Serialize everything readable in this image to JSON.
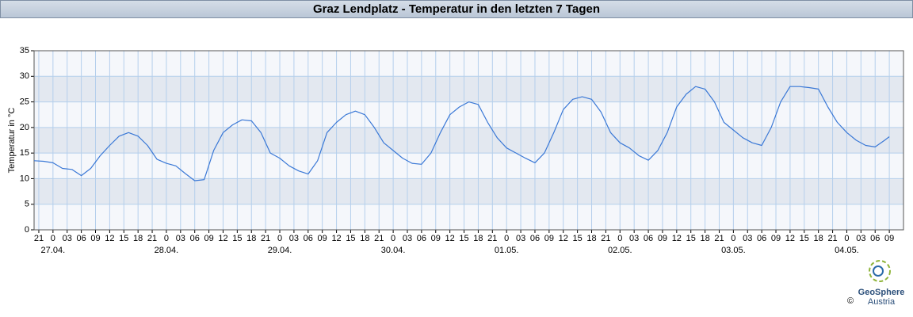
{
  "chart_data": {
    "type": "line",
    "title": "Graz Lendplatz - Temperatur in den letzten 7 Tagen",
    "ylabel": "Temperatur in °C",
    "color": "#3a78d6",
    "grid": true,
    "xlim": [
      -4,
      180
    ],
    "ylim": [
      0,
      35
    ],
    "yticks": [
      0,
      5,
      10,
      15,
      20,
      25,
      30,
      35
    ],
    "xticks": [
      {
        "value": -3,
        "label": "21"
      },
      0,
      {
        "value": 3,
        "label": "03"
      },
      {
        "value": 6,
        "label": "06"
      },
      {
        "value": 9,
        "label": "09"
      },
      12,
      15,
      18,
      {
        "value": 21,
        "label": "21"
      },
      {
        "value": 24,
        "label": "0"
      },
      {
        "value": 27,
        "label": "03"
      },
      {
        "value": 30,
        "label": "06"
      },
      {
        "value": 33,
        "label": "09"
      },
      {
        "value": 36,
        "label": "12"
      },
      {
        "value": 39,
        "label": "15"
      },
      {
        "value": 42,
        "label": "18"
      },
      {
        "value": 45,
        "label": "21"
      },
      {
        "value": 48,
        "label": "0"
      },
      {
        "value": 51,
        "label": "03"
      },
      {
        "value": 54,
        "label": "06"
      },
      {
        "value": 57,
        "label": "09"
      },
      {
        "value": 60,
        "label": "12"
      },
      {
        "value": 63,
        "label": "15"
      },
      {
        "value": 66,
        "label": "18"
      },
      {
        "value": 69,
        "label": "21"
      },
      {
        "value": 72,
        "label": "0"
      },
      {
        "value": 75,
        "label": "03"
      },
      {
        "value": 78,
        "label": "06"
      },
      {
        "value": 81,
        "label": "09"
      },
      {
        "value": 84,
        "label": "12"
      },
      {
        "value": 87,
        "label": "15"
      },
      {
        "value": 90,
        "label": "18"
      },
      {
        "value": 93,
        "label": "21"
      },
      {
        "value": 96,
        "label": "0"
      },
      {
        "value": 99,
        "label": "03"
      },
      {
        "value": 102,
        "label": "06"
      },
      {
        "value": 105,
        "label": "09"
      },
      {
        "value": 108,
        "label": "12"
      },
      {
        "value": 111,
        "label": "15"
      },
      {
        "value": 114,
        "label": "18"
      },
      {
        "value": 117,
        "label": "21"
      },
      {
        "value": 120,
        "label": "0"
      },
      {
        "value": 123,
        "label": "03"
      },
      {
        "value": 126,
        "label": "06"
      },
      {
        "value": 129,
        "label": "09"
      },
      {
        "value": 132,
        "label": "12"
      },
      {
        "value": 135,
        "label": "15"
      },
      {
        "value": 138,
        "label": "18"
      },
      {
        "value": 141,
        "label": "21"
      },
      {
        "value": 144,
        "label": "0"
      },
      {
        "value": 147,
        "label": "03"
      },
      {
        "value": 150,
        "label": "06"
      },
      {
        "value": 153,
        "label": "09"
      },
      {
        "value": 156,
        "label": "12"
      },
      {
        "value": 159,
        "label": "15"
      },
      {
        "value": 162,
        "label": "18"
      },
      {
        "value": 165,
        "label": "21"
      },
      {
        "value": 168,
        "label": "0"
      },
      {
        "value": 171,
        "label": "03"
      },
      {
        "value": 174,
        "label": "06"
      },
      {
        "value": 177,
        "label": "09"
      }
    ],
    "date_ticks": [
      {
        "value": 0,
        "label": "27.04."
      },
      {
        "value": 24,
        "label": "28.04."
      },
      {
        "value": 48,
        "label": "29.04."
      },
      {
        "value": 72,
        "label": "30.04."
      },
      {
        "value": 96,
        "label": "01.05."
      },
      {
        "value": 120,
        "label": "02.05."
      },
      {
        "value": 144,
        "label": "03.05."
      },
      {
        "value": 168,
        "label": "04.05."
      }
    ],
    "x": [
      -4,
      -2,
      0,
      2,
      4,
      6,
      8,
      10,
      12,
      14,
      16,
      18,
      20,
      22,
      24,
      26,
      28,
      30,
      32,
      34,
      36,
      38,
      40,
      42,
      44,
      46,
      48,
      50,
      52,
      54,
      56,
      58,
      60,
      62,
      64,
      66,
      68,
      70,
      72,
      74,
      76,
      78,
      80,
      82,
      84,
      86,
      88,
      90,
      92,
      94,
      96,
      98,
      100,
      102,
      104,
      106,
      108,
      110,
      112,
      114,
      116,
      118,
      120,
      122,
      124,
      126,
      128,
      130,
      132,
      134,
      136,
      138,
      140,
      142,
      144,
      146,
      148,
      150,
      152,
      154,
      156,
      158,
      160,
      162,
      164,
      166,
      168,
      170,
      172,
      174,
      176,
      177
    ],
    "values": [
      13.5,
      13.4,
      13.1,
      12,
      11.8,
      10.6,
      12,
      14.5,
      16.5,
      18.3,
      19,
      18.3,
      16.5,
      13.8,
      13,
      12.5,
      11,
      9.6,
      9.8,
      15.5,
      19,
      20.5,
      21.5,
      21.3,
      19,
      15,
      14,
      12.5,
      11.5,
      10.9,
      13.5,
      19,
      21,
      22.5,
      23.2,
      22.5,
      20,
      17,
      15.5,
      14,
      13,
      12.8,
      15,
      19,
      22.5,
      24,
      25,
      24.5,
      21,
      18,
      16,
      15,
      14,
      13.1,
      15,
      19,
      23.5,
      25.5,
      26,
      25.5,
      23,
      19,
      17,
      16,
      14.5,
      13.6,
      15.5,
      19,
      24,
      26.5,
      28,
      27.5,
      25,
      21,
      19.5,
      18,
      17,
      16.5,
      20,
      25,
      28,
      28,
      27.8,
      27.5,
      24,
      21,
      19,
      17.5,
      16.5,
      16.2,
      17.5,
      18.2
    ]
  },
  "logo": {
    "name": "GeoSphere",
    "sub": "Austria",
    "copyright": "©"
  }
}
